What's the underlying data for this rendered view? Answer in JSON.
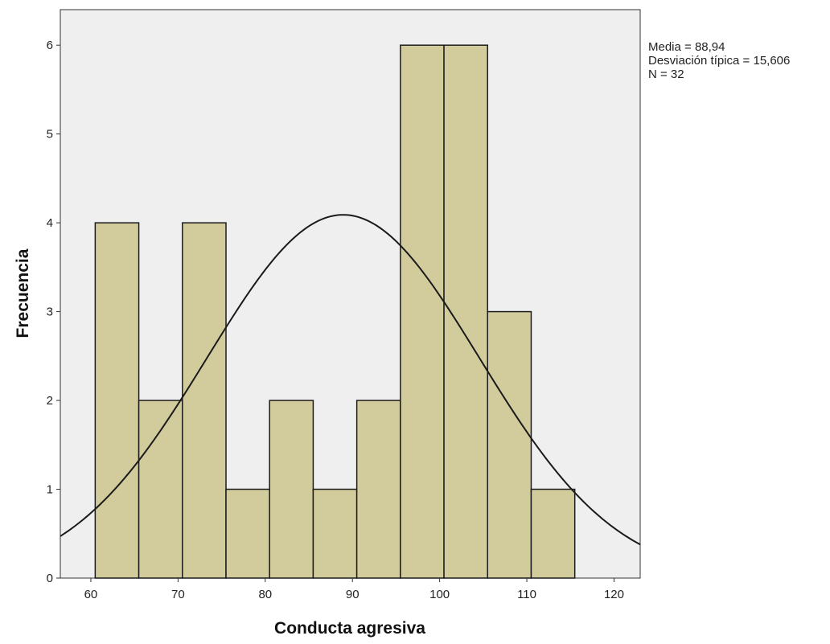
{
  "chart_data": {
    "type": "bar",
    "subtype": "histogram",
    "xlabel": "Conducta agresiva",
    "ylabel": "Frecuencia",
    "bins": [
      {
        "start": 60.5,
        "end": 65.5,
        "count": 4
      },
      {
        "start": 65.5,
        "end": 70.5,
        "count": 2
      },
      {
        "start": 70.5,
        "end": 75.5,
        "count": 4
      },
      {
        "start": 75.5,
        "end": 80.5,
        "count": 1
      },
      {
        "start": 80.5,
        "end": 85.5,
        "count": 2
      },
      {
        "start": 85.5,
        "end": 90.5,
        "count": 1
      },
      {
        "start": 90.5,
        "end": 95.5,
        "count": 2
      },
      {
        "start": 95.5,
        "end": 100.5,
        "count": 6
      },
      {
        "start": 100.5,
        "end": 105.5,
        "count": 6
      },
      {
        "start": 105.5,
        "end": 110.5,
        "count": 3
      },
      {
        "start": 110.5,
        "end": 115.5,
        "count": 1
      }
    ],
    "xlim": [
      56.5,
      123
    ],
    "ylim": [
      0,
      6.4
    ],
    "x_ticks": [
      60,
      70,
      80,
      90,
      100,
      110,
      120
    ],
    "y_ticks": [
      0,
      1,
      2,
      3,
      4,
      5,
      6
    ],
    "normal_curve": {
      "mean": 88.94,
      "sd": 15.606,
      "n": 32,
      "bin_width": 5
    },
    "stats_text": [
      "Media = 88,94",
      "Desviación típica = 15,606",
      "N = 32"
    ],
    "grid": false,
    "legend": "none",
    "colors": {
      "bar_fill": "#d2cc9c",
      "bar_stroke": "#1c1c1c",
      "plot_background": "#efefef",
      "curve": "#1a1a1a"
    }
  }
}
